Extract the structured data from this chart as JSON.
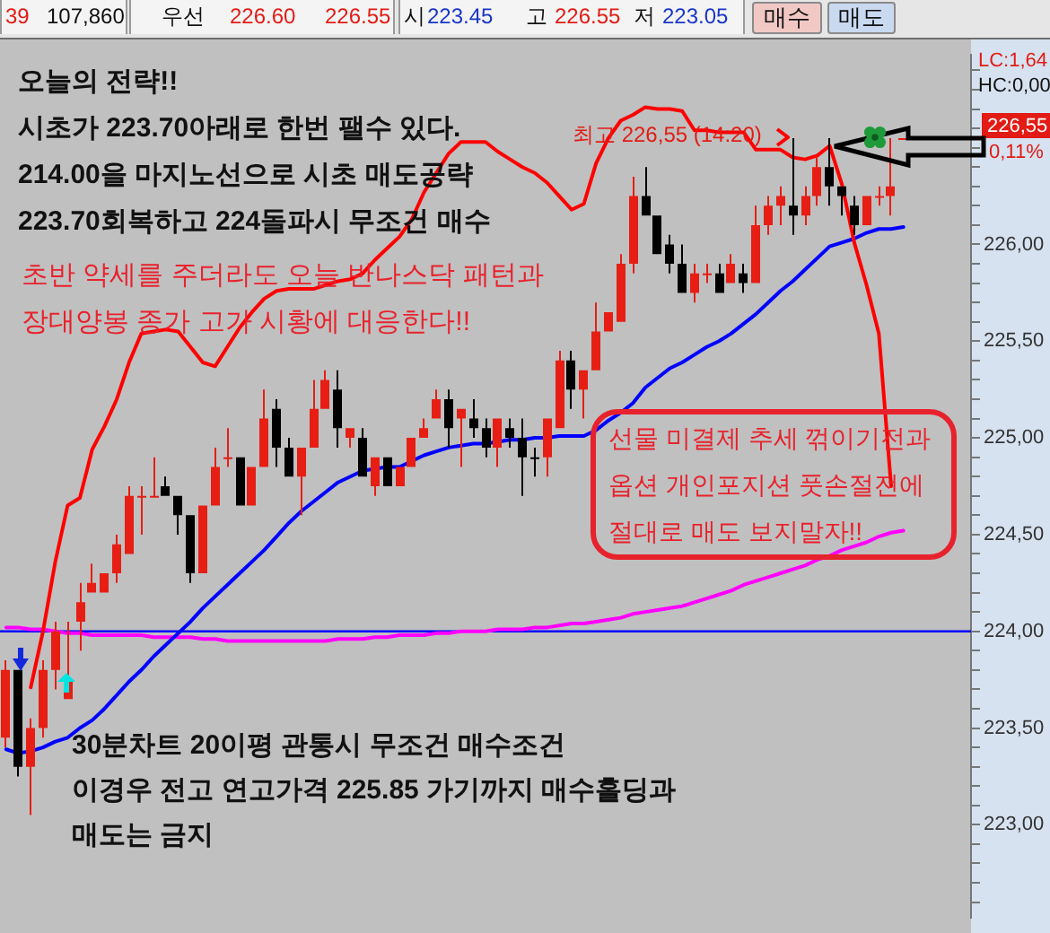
{
  "chart_data": {
    "type": "candlestick",
    "categories": [
      null,
      null,
      null,
      null,
      null,
      null,
      null,
      null,
      null,
      null,
      null,
      null,
      null,
      null,
      null,
      null,
      null,
      null,
      null,
      null,
      null,
      null,
      null,
      null,
      null,
      null,
      null,
      null,
      null,
      null,
      null,
      null,
      null,
      null,
      null,
      null,
      null,
      null,
      null,
      null,
      null,
      null,
      null,
      null,
      null,
      null,
      null,
      null,
      null,
      null,
      null,
      null,
      null,
      null,
      null,
      null,
      null,
      null,
      null,
      null,
      null,
      null,
      null,
      null,
      null,
      null,
      null,
      null,
      null,
      null,
      null,
      null,
      null,
      null,
      null,
      null,
      null,
      null,
      null
    ],
    "ohlc": [
      [
        223.45,
        223.85,
        223.4,
        223.8
      ],
      [
        223.8,
        223.8,
        223.25,
        223.3
      ],
      [
        223.3,
        223.55,
        223.05,
        223.5
      ],
      [
        223.5,
        223.85,
        223.45,
        223.8
      ],
      [
        223.8,
        224.05,
        223.7,
        224.0
      ],
      [
        223.65,
        224.05,
        223.65,
        223.75
      ],
      [
        224.05,
        224.25,
        223.9,
        224.15
      ],
      [
        224.2,
        224.35,
        224.2,
        224.25
      ],
      [
        224.2,
        224.3,
        224.2,
        224.3
      ],
      [
        224.3,
        224.5,
        224.25,
        224.45
      ],
      [
        224.4,
        224.75,
        224.4,
        224.7
      ],
      [
        224.7,
        224.75,
        224.5,
        224.7
      ],
      [
        224.7,
        224.9,
        224.7,
        224.7
      ],
      [
        224.75,
        224.8,
        224.7,
        224.7
      ],
      [
        224.7,
        224.7,
        224.5,
        224.6
      ],
      [
        224.6,
        224.6,
        224.25,
        224.3
      ],
      [
        224.3,
        224.65,
        224.3,
        224.65
      ],
      [
        224.65,
        224.95,
        224.65,
        224.85
      ],
      [
        224.9,
        225.05,
        224.85,
        224.9
      ],
      [
        224.9,
        224.9,
        224.65,
        224.65
      ],
      [
        224.65,
        224.85,
        224.65,
        224.85
      ],
      [
        224.85,
        225.25,
        224.85,
        225.1
      ],
      [
        225.15,
        225.2,
        224.85,
        224.95
      ],
      [
        224.95,
        225.0,
        224.8,
        224.8
      ],
      [
        224.8,
        224.95,
        224.6,
        224.95
      ],
      [
        224.95,
        225.3,
        224.95,
        225.15
      ],
      [
        225.15,
        225.35,
        225.15,
        225.3
      ],
      [
        225.25,
        225.35,
        224.95,
        225.05
      ],
      [
        225.0,
        225.05,
        224.95,
        225.05
      ],
      [
        225.0,
        225.05,
        224.8,
        224.8
      ],
      [
        224.75,
        224.9,
        224.7,
        224.9
      ],
      [
        224.9,
        224.9,
        224.75,
        224.75
      ],
      [
        224.75,
        224.85,
        224.75,
        224.85
      ],
      [
        224.85,
        225.0,
        224.85,
        225.0
      ],
      [
        225.0,
        225.1,
        225.0,
        225.05
      ],
      [
        225.1,
        225.25,
        225.1,
        225.2
      ],
      [
        225.2,
        225.25,
        224.95,
        225.05
      ],
      [
        225.1,
        225.15,
        224.85,
        225.15
      ],
      [
        225.1,
        225.2,
        225.0,
        225.05
      ],
      [
        225.05,
        225.1,
        224.9,
        224.95
      ],
      [
        224.95,
        225.1,
        224.85,
        225.1
      ],
      [
        225.05,
        225.1,
        224.95,
        225.0
      ],
      [
        225.0,
        225.1,
        224.7,
        224.9
      ],
      [
        224.9,
        224.95,
        224.8,
        224.9
      ],
      [
        224.9,
        225.1,
        224.8,
        225.1
      ],
      [
        225.05,
        225.45,
        225.05,
        225.4
      ],
      [
        225.4,
        225.45,
        225.15,
        225.25
      ],
      [
        225.25,
        225.35,
        225.1,
        225.35
      ],
      [
        225.35,
        225.7,
        225.35,
        225.55
      ],
      [
        225.55,
        225.65,
        225.55,
        225.65
      ],
      [
        225.6,
        225.95,
        225.6,
        225.9
      ],
      [
        225.9,
        226.35,
        225.85,
        226.25
      ],
      [
        226.25,
        226.4,
        226.15,
        226.15
      ],
      [
        226.15,
        226.15,
        225.95,
        225.95
      ],
      [
        226.0,
        226.05,
        225.85,
        225.9
      ],
      [
        225.9,
        226.0,
        225.75,
        225.75
      ],
      [
        225.75,
        225.9,
        225.7,
        225.85
      ],
      [
        225.85,
        225.9,
        225.8,
        225.85
      ],
      [
        225.85,
        225.9,
        225.75,
        225.75
      ],
      [
        225.8,
        225.95,
        225.8,
        225.9
      ],
      [
        225.85,
        225.9,
        225.75,
        225.8
      ],
      [
        225.8,
        226.2,
        225.8,
        226.1
      ],
      [
        226.1,
        226.25,
        226.05,
        226.2
      ],
      [
        226.2,
        226.3,
        226.1,
        226.25
      ],
      [
        226.2,
        226.55,
        226.05,
        226.15
      ],
      [
        226.15,
        226.3,
        226.1,
        226.25
      ],
      [
        226.25,
        226.45,
        226.2,
        226.4
      ],
      [
        226.4,
        226.55,
        226.2,
        226.3
      ],
      [
        226.3,
        226.3,
        226.15,
        226.25
      ],
      [
        226.2,
        226.25,
        226.05,
        226.1
      ],
      [
        226.1,
        226.25,
        226.1,
        226.25
      ],
      [
        226.25,
        226.3,
        226.2,
        226.25
      ],
      [
        226.25,
        226.55,
        226.15,
        226.3
      ],
      [
        226.55,
        226.55,
        226.55,
        226.55
      ],
      null,
      null,
      null,
      null,
      null
    ],
    "colors": [
      "#e61e14",
      "#000000",
      "#e61e14",
      "#e61e14",
      "#e61e14",
      "#e61e14",
      "#e61e14",
      "#e61e14",
      "#e61e14",
      "#e61e14",
      "#e61e14",
      "#e61e14",
      "#e61e14",
      "#000000",
      "#000000",
      "#000000",
      "#e61e14",
      "#e61e14",
      "#e61e14",
      "#000000",
      "#e61e14",
      "#e61e14",
      "#000000",
      "#000000",
      "#e61e14",
      "#e61e14",
      "#e61e14",
      "#000000",
      "#e61e14",
      "#000000",
      "#e61e14",
      "#000000",
      "#e61e14",
      "#e61e14",
      "#e61e14",
      "#e61e14",
      "#000000",
      "#e61e14",
      "#000000",
      "#000000",
      "#e61e14",
      "#000000",
      "#000000",
      "#000000",
      "#e61e14",
      "#e61e14",
      "#000000",
      "#e61e14",
      "#e61e14",
      "#e61e14",
      "#e61e14",
      "#e61e14",
      "#000000",
      "#000000",
      "#000000",
      "#000000",
      "#e61e14",
      "#e61e14",
      "#000000",
      "#e61e14",
      "#000000",
      "#e61e14",
      "#e61e14",
      "#e61e14",
      "#000000",
      "#e61e14",
      "#e61e14",
      "#000000",
      "#000000",
      "#000000",
      "#e61e14",
      "#e61e14",
      "#e61e14",
      "#e61e14",
      null,
      null,
      null,
      null,
      null
    ],
    "series": [
      {
        "type": "line",
        "color": "#ff0000",
        "values": [
          null,
          null,
          223.71,
          224.0,
          224.36,
          224.65,
          224.69,
          224.94,
          225.06,
          225.2,
          225.39,
          225.54,
          225.55,
          225.56,
          225.55,
          225.47,
          225.39,
          225.37,
          225.47,
          225.57,
          225.65,
          225.72,
          225.76,
          225.77,
          225.77,
          225.77,
          225.79,
          225.81,
          225.82,
          225.85,
          225.92,
          225.98,
          226.04,
          226.13,
          226.27,
          226.37,
          226.47,
          226.53,
          226.53,
          226.53,
          226.48,
          226.44,
          226.4,
          226.37,
          226.32,
          226.25,
          226.18,
          226.21,
          226.42,
          226.55,
          226.64,
          226.67,
          226.71,
          226.7,
          226.7,
          226.69,
          226.59,
          226.59,
          226.58,
          226.58,
          226.58,
          226.49,
          226.49,
          226.49,
          226.45,
          226.44,
          226.46,
          226.51,
          226.31,
          226.01,
          225.79,
          225.54,
          224.75,
          null,
          null,
          null,
          null,
          null,
          null
        ]
      },
      {
        "type": "line",
        "color": "#0000ff",
        "values": [
          223.39,
          223.37,
          223.38,
          223.4,
          223.43,
          223.45,
          223.5,
          223.54,
          223.6,
          223.67,
          223.74,
          223.8,
          223.87,
          223.93,
          223.99,
          224.05,
          224.12,
          224.18,
          224.24,
          224.3,
          224.36,
          224.42,
          224.49,
          224.56,
          224.62,
          224.67,
          224.72,
          224.77,
          224.8,
          224.83,
          224.84,
          224.85,
          224.85,
          224.88,
          224.91,
          224.93,
          224.95,
          224.96,
          224.97,
          224.97,
          224.98,
          224.99,
          224.99,
          225.0,
          225.0,
          225.01,
          225.01,
          225.01,
          225.04,
          225.09,
          225.13,
          225.18,
          225.26,
          225.31,
          225.36,
          225.39,
          225.43,
          225.47,
          225.5,
          225.54,
          225.59,
          225.64,
          225.7,
          225.76,
          225.81,
          225.87,
          225.93,
          225.99,
          226.01,
          226.03,
          226.06,
          226.08,
          226.08,
          226.09,
          null,
          null,
          null,
          null,
          null
        ]
      },
      {
        "type": "line",
        "color": "#ff00ff",
        "values": [
          224.02,
          224.02,
          224.01,
          224.01,
          224.0,
          223.99,
          223.99,
          223.98,
          223.98,
          223.98,
          223.98,
          223.98,
          223.97,
          223.97,
          223.97,
          223.97,
          223.96,
          223.96,
          223.95,
          223.95,
          223.95,
          223.95,
          223.95,
          223.95,
          223.95,
          223.95,
          223.95,
          223.96,
          223.96,
          223.96,
          223.97,
          223.97,
          223.98,
          223.98,
          223.98,
          223.99,
          223.99,
          224.0,
          224.0,
          224.0,
          224.01,
          224.01,
          224.01,
          224.02,
          224.02,
          224.03,
          224.04,
          224.04,
          224.05,
          224.06,
          224.07,
          224.09,
          224.1,
          224.11,
          224.12,
          224.13,
          224.15,
          224.17,
          224.19,
          224.21,
          224.24,
          224.26,
          224.28,
          224.3,
          224.32,
          224.34,
          224.37,
          224.39,
          224.42,
          224.44,
          224.46,
          224.49,
          224.51,
          224.52,
          null,
          null,
          null,
          null,
          null
        ]
      }
    ],
    "ylim": [
      222.52,
      226.98
    ],
    "yticks": [
      {
        "value": 222.6,
        "label": null
      },
      {
        "value": 222.7,
        "label": null
      },
      {
        "value": 222.8,
        "label": null
      },
      {
        "value": 222.9,
        "label": null
      },
      {
        "value": 223,
        "label": "223,00"
      },
      {
        "value": 223.1,
        "label": null
      },
      {
        "value": 223.2,
        "label": null
      },
      {
        "value": 223.3,
        "label": null
      },
      {
        "value": 223.4,
        "label": null
      },
      {
        "value": 223.5,
        "label": "223,50"
      },
      {
        "value": 223.6,
        "label": null
      },
      {
        "value": 223.7,
        "label": null
      },
      {
        "value": 223.8,
        "label": null
      },
      {
        "value": 223.9,
        "label": null
      },
      {
        "value": 224,
        "label": "224,00"
      },
      {
        "value": 224.1,
        "label": null
      },
      {
        "value": 224.2,
        "label": null
      },
      {
        "value": 224.3,
        "label": null
      },
      {
        "value": 224.4,
        "label": null
      },
      {
        "value": 224.5,
        "label": "224,50"
      },
      {
        "value": 224.6,
        "label": null
      },
      {
        "value": 224.7,
        "label": null
      },
      {
        "value": 224.8,
        "label": null
      },
      {
        "value": 224.9,
        "label": null
      },
      {
        "value": 225,
        "label": "225,00"
      },
      {
        "value": 225.1,
        "label": null
      },
      {
        "value": 225.2,
        "label": null
      },
      {
        "value": 225.3,
        "label": null
      },
      {
        "value": 225.4,
        "label": null
      },
      {
        "value": 225.5,
        "label": "225,50"
      },
      {
        "value": 225.6,
        "label": null
      },
      {
        "value": 225.7,
        "label": null
      },
      {
        "value": 225.8,
        "label": null
      },
      {
        "value": 225.9,
        "label": null
      },
      {
        "value": 226,
        "label": "226,00"
      },
      {
        "value": 226.1,
        "label": null
      },
      {
        "value": 226.2,
        "label": null
      },
      {
        "value": 226.3,
        "label": null
      },
      {
        "value": 226.4,
        "label": null
      },
      {
        "value": 226.5,
        "label": null
      },
      {
        "value": 226.6,
        "label": null
      },
      {
        "value": 226.7,
        "label": null
      },
      {
        "value": 226.8,
        "label": null
      },
      {
        "value": 226.9,
        "label": null
      }
    ],
    "tick_labels": "y",
    "ref_lines": [
      {
        "axis": "y",
        "value": 224,
        "color": "#0000ff"
      }
    ],
    "annotations": [
      "39",
      "107,860",
      "우선",
      "226.60",
      "226.55",
      "시",
      "223.45",
      "고",
      "226.55",
      "저",
      "223.05",
      "매수",
      "매도",
      "LC:1,64",
      "HC:0,00",
      "오늘의 전략!!",
      "시초가 223.70아래로 한번 팰수 있다.",
      "214.00을 마지노선으로 시초 매도공략",
      "223.70회복하고 224돌파시 무조건 매수",
      "초반 약세를 주더라도 오늘 반나스닥 패턴과",
      "장대양봉 종가 고가 시황에 대응한다!!",
      "최고 226,55 (14:20)",
      "선물 미결제 추세 꺾이기전과",
      "옵션 개인포지션 풋손절전에",
      "절대로 매도 보지말자!!",
      "30분차트 20이평 관통시 무조건 매수조건",
      "이경우 전고 연고가격 225.85 가기까지 매수홀딩과",
      "매도는 금지",
      "226,55",
      "0,11%"
    ]
  }
}
